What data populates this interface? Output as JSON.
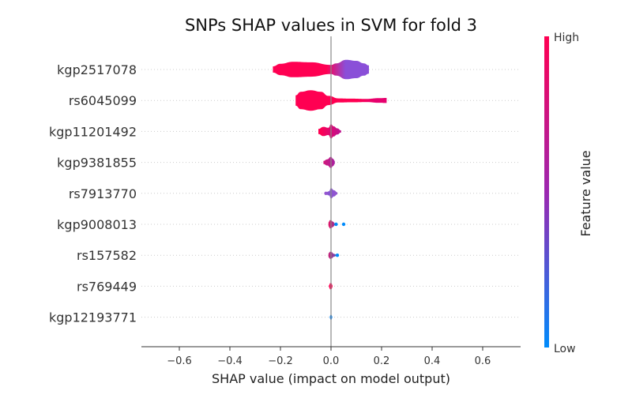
{
  "chart_data": {
    "type": "violin",
    "title": "SNPs SHAP values in SVM for fold 3",
    "xlabel": "SHAP value (impact on model output)",
    "ylabel": "",
    "xlim": [
      -0.75,
      0.75
    ],
    "x_ticks": [
      -0.6,
      -0.4,
      -0.2,
      0.0,
      0.2,
      0.4,
      0.6
    ],
    "x_tick_labels": [
      "−0.6",
      "−0.4",
      "−0.2",
      "0.0",
      "0.2",
      "0.4",
      "0.6"
    ],
    "zero_line": true,
    "grid": "dotted horizontal row guides",
    "colorbar": {
      "label": "Feature value",
      "high_label": "High",
      "low_label": "Low",
      "high_color": "#ff0052",
      "mid_color": "#9c27b0",
      "low_color": "#008bfb"
    },
    "features": [
      {
        "name": "kgp2517078",
        "range": [
          -0.23,
          0.15
        ],
        "profile": [
          [
            -0.23,
            0.3
          ],
          [
            -0.2,
            0.55
          ],
          [
            -0.15,
            0.75
          ],
          [
            -0.08,
            0.7
          ],
          [
            0.0,
            0.45
          ],
          [
            0.02,
            0.6
          ],
          [
            0.06,
            0.95
          ],
          [
            0.1,
            0.85
          ],
          [
            0.13,
            0.6
          ],
          [
            0.15,
            0.4
          ]
        ],
        "color_split": 0.02,
        "color_low_side": "#ff0052",
        "color_high_side": "#8a4fd8",
        "outliers": []
      },
      {
        "name": "rs6045099",
        "range": [
          -0.14,
          0.22
        ],
        "profile": [
          [
            -0.14,
            0.5
          ],
          [
            -0.12,
            0.85
          ],
          [
            -0.08,
            1.0
          ],
          [
            -0.04,
            0.85
          ],
          [
            -0.01,
            0.45
          ],
          [
            0.03,
            0.2
          ],
          [
            0.08,
            0.18
          ],
          [
            0.14,
            0.15
          ],
          [
            0.19,
            0.22
          ],
          [
            0.22,
            0.25
          ]
        ],
        "color_split": 0.14,
        "color_low_side": "#ff0052",
        "color_high_side": "#e6006e",
        "outliers": []
      },
      {
        "name": "kgp11201492",
        "range": [
          -0.05,
          0.04
        ],
        "profile": [
          [
            -0.05,
            0.25
          ],
          [
            -0.03,
            0.45
          ],
          [
            -0.01,
            0.35
          ],
          [
            0.0,
            0.7
          ],
          [
            0.01,
            0.5
          ],
          [
            0.025,
            0.3
          ],
          [
            0.04,
            0.1
          ]
        ],
        "color_split": -0.005,
        "color_low_side": "#ff0052",
        "color_high_side": "#c0128e",
        "outliers": []
      },
      {
        "name": "kgp9381855",
        "range": [
          -0.03,
          0.015
        ],
        "profile": [
          [
            -0.03,
            0.15
          ],
          [
            -0.015,
            0.3
          ],
          [
            0.0,
            0.55
          ],
          [
            0.008,
            0.35
          ],
          [
            0.015,
            0.15
          ]
        ],
        "color_split": -0.008,
        "color_low_side": "#e0106a",
        "color_high_side": "#9c27b0",
        "outliers": []
      },
      {
        "name": "rs7913770",
        "range": [
          -0.02,
          0.025
        ],
        "profile": [
          [
            -0.02,
            0.1
          ],
          [
            -0.008,
            0.2
          ],
          [
            0.0,
            0.5
          ],
          [
            0.012,
            0.3
          ],
          [
            0.025,
            0.1
          ]
        ],
        "color_split": -0.01,
        "color_low_side": "#7a55d6",
        "color_high_side": "#9455cf",
        "outliers": [
          -0.02
        ]
      },
      {
        "name": "kgp9008013",
        "range": [
          -0.01,
          0.015
        ],
        "profile": [
          [
            -0.01,
            0.2
          ],
          [
            -0.004,
            0.4
          ],
          [
            0.002,
            0.35
          ],
          [
            0.008,
            0.25
          ],
          [
            0.015,
            0.1
          ]
        ],
        "color_split": 0.02,
        "color_low_side": "#ff0052",
        "color_high_side": "#008bfb",
        "outliers": [
          0.02,
          0.05
        ]
      },
      {
        "name": "rs157582",
        "range": [
          -0.01,
          0.02
        ],
        "profile": [
          [
            -0.01,
            0.2
          ],
          [
            -0.003,
            0.35
          ],
          [
            0.003,
            0.3
          ],
          [
            0.01,
            0.15
          ],
          [
            0.02,
            0.08
          ]
        ],
        "color_split": 0.012,
        "color_low_side": "#ff0052",
        "color_high_side": "#008bfb",
        "outliers": [
          0.025
        ]
      },
      {
        "name": "rs769449",
        "range": [
          -0.008,
          0.006
        ],
        "profile": [
          [
            -0.008,
            0.1
          ],
          [
            -0.003,
            0.3
          ],
          [
            0.002,
            0.28
          ],
          [
            0.006,
            0.08
          ]
        ],
        "color_split": 0.05,
        "color_low_side": "#ff0052",
        "color_high_side": "#ff0052",
        "outliers": []
      },
      {
        "name": "kgp12193771",
        "range": [
          -0.005,
          0.005
        ],
        "profile": [
          [
            -0.005,
            0.08
          ],
          [
            -0.002,
            0.22
          ],
          [
            0.001,
            0.25
          ],
          [
            0.005,
            0.08
          ]
        ],
        "color_split": -0.05,
        "color_low_side": "#008bfb",
        "color_high_side": "#0a86f5",
        "outliers": []
      }
    ]
  }
}
